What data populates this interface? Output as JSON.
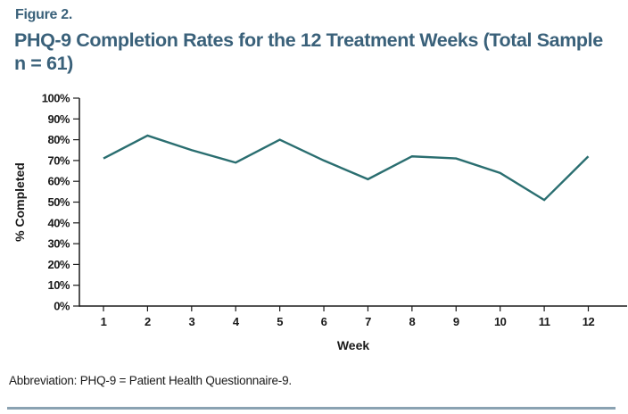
{
  "figure": {
    "label": "Figure 2.",
    "title_lines": [
      "PHQ-9 Completion Rates for the 12 Treatment Weeks (Total Sample",
      "n = 61)"
    ]
  },
  "chart_data": {
    "type": "line",
    "x": [
      1,
      2,
      3,
      4,
      5,
      6,
      7,
      8,
      9,
      10,
      11,
      12
    ],
    "values": [
      71,
      82,
      75,
      69,
      80,
      70,
      61,
      72,
      71,
      64,
      51,
      72
    ],
    "title": "PHQ-9 Completion Rates for the 12 Treatment Weeks (Total Sample n = 61)",
    "xlabel": "Week",
    "ylabel": "% Completed",
    "ylim": [
      0,
      100
    ],
    "ytick_step": 10,
    "ytick_suffix": "%",
    "grid": false,
    "legend": "none",
    "line_color": "#2a6e70",
    "axis_color": "#1a1a1a"
  },
  "footer": {
    "abbreviation": "Abbreviation: PHQ-9 = Patient Health Questionnaire-9."
  },
  "colors": {
    "title_text": "#3a617a",
    "bottom_rule": "#8aa2b2"
  }
}
